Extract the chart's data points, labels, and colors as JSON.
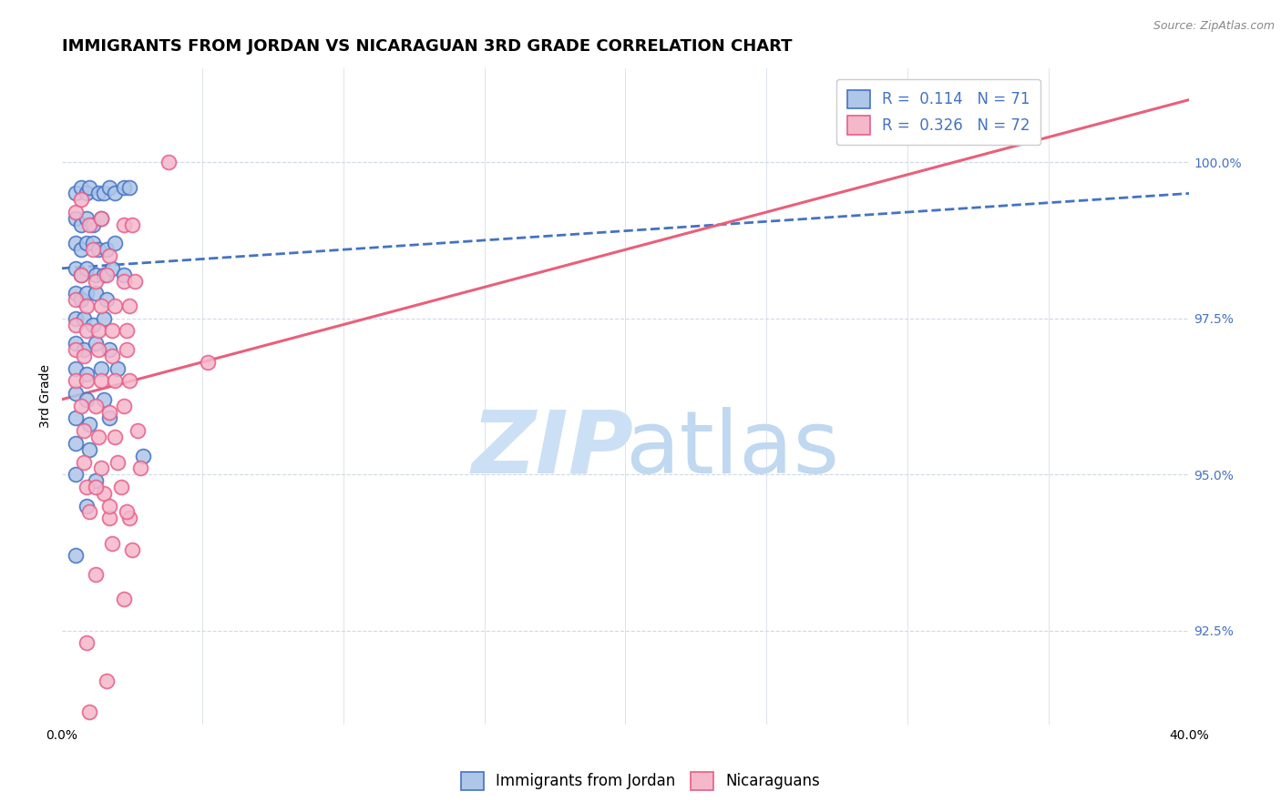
{
  "title": "IMMIGRANTS FROM JORDAN VS NICARAGUAN 3RD GRADE CORRELATION CHART",
  "source": "Source: ZipAtlas.com",
  "ylabel_label": "3rd Grade",
  "yticks": [
    92.5,
    95.0,
    97.5,
    100.0
  ],
  "ytick_labels": [
    "92.5%",
    "95.0%",
    "97.5%",
    "100.0%"
  ],
  "xlim": [
    0.0,
    40.0
  ],
  "ylim": [
    91.0,
    101.5
  ],
  "jordan_color": "#aec6e8",
  "nicaraguan_color": "#f5b8cb",
  "jordan_edge_color": "#4472c4",
  "nicaraguan_edge_color": "#e85d8a",
  "jordan_line_color": "#4472c4",
  "nicaraguan_line_color": "#e8607a",
  "grid_color": "#d0d8e8",
  "right_axis_color": "#4472c4",
  "background_color": "#ffffff",
  "watermark_zip_color": "#cce0f5",
  "watermark_atlas_color": "#c0d8f0",
  "title_fontsize": 13,
  "axis_label_fontsize": 10,
  "legend_fontsize": 12,
  "tick_fontsize": 10,
  "source_fontsize": 9,
  "marker_size": 130,
  "jordan_points_x": [
    0.5,
    0.7,
    0.9,
    1.0,
    1.3,
    1.5,
    1.7,
    1.9,
    2.2,
    2.4,
    0.5,
    0.7,
    0.9,
    1.1,
    1.4,
    0.5,
    0.7,
    0.9,
    1.1,
    1.3,
    1.6,
    1.9,
    0.5,
    0.7,
    0.9,
    1.2,
    1.5,
    1.8,
    2.2,
    0.5,
    0.7,
    0.9,
    1.2,
    1.6,
    0.5,
    0.8,
    1.1,
    1.5,
    0.5,
    0.8,
    1.2,
    1.7,
    0.5,
    0.9,
    1.4,
    2.0,
    0.5,
    0.9,
    1.5,
    0.5,
    1.0,
    1.7,
    0.5,
    1.0,
    2.9,
    0.5,
    1.2,
    0.9,
    0.5
  ],
  "jordan_points_y": [
    99.5,
    99.6,
    99.5,
    99.6,
    99.5,
    99.5,
    99.6,
    99.5,
    99.6,
    99.6,
    99.1,
    99.0,
    99.1,
    99.0,
    99.1,
    98.7,
    98.6,
    98.7,
    98.7,
    98.6,
    98.6,
    98.7,
    98.3,
    98.2,
    98.3,
    98.2,
    98.2,
    98.3,
    98.2,
    97.9,
    97.8,
    97.9,
    97.9,
    97.8,
    97.5,
    97.5,
    97.4,
    97.5,
    97.1,
    97.0,
    97.1,
    97.0,
    96.7,
    96.6,
    96.7,
    96.7,
    96.3,
    96.2,
    96.2,
    95.9,
    95.8,
    95.9,
    95.5,
    95.4,
    95.3,
    95.0,
    94.9,
    94.5,
    93.7
  ],
  "nicaraguan_points_x": [
    0.5,
    0.7,
    1.0,
    1.4,
    2.2,
    2.5,
    1.1,
    1.7,
    0.7,
    1.2,
    1.6,
    2.2,
    2.6,
    0.5,
    0.9,
    1.4,
    1.9,
    2.4,
    0.5,
    0.9,
    1.3,
    1.8,
    2.3,
    0.5,
    0.8,
    1.3,
    1.8,
    2.3,
    0.5,
    0.9,
    1.4,
    1.9,
    2.4,
    0.7,
    1.2,
    1.7,
    2.2,
    0.8,
    1.3,
    1.9,
    2.7,
    0.8,
    1.4,
    2.0,
    2.8,
    0.9,
    1.5,
    2.1,
    1.0,
    1.7,
    2.4,
    1.2,
    1.7,
    2.3,
    1.8,
    2.5,
    1.2,
    2.2,
    0.9,
    1.6,
    1.0,
    3.8,
    5.2
  ],
  "nicaraguan_points_y": [
    99.2,
    99.4,
    99.0,
    99.1,
    99.0,
    99.0,
    98.6,
    98.5,
    98.2,
    98.1,
    98.2,
    98.1,
    98.1,
    97.8,
    97.7,
    97.7,
    97.7,
    97.7,
    97.4,
    97.3,
    97.3,
    97.3,
    97.3,
    97.0,
    96.9,
    97.0,
    96.9,
    97.0,
    96.5,
    96.5,
    96.5,
    96.5,
    96.5,
    96.1,
    96.1,
    96.0,
    96.1,
    95.7,
    95.6,
    95.6,
    95.7,
    95.2,
    95.1,
    95.2,
    95.1,
    94.8,
    94.7,
    94.8,
    94.4,
    94.3,
    94.3,
    94.8,
    94.5,
    94.4,
    93.9,
    93.8,
    93.4,
    93.0,
    92.3,
    91.7,
    91.2,
    100.0,
    96.8
  ],
  "jordan_trend_x": [
    0.0,
    40.0
  ],
  "jordan_trend_y": [
    98.3,
    99.5
  ],
  "nicaraguan_trend_x": [
    0.0,
    40.0
  ],
  "nicaraguan_trend_y": [
    96.2,
    101.0
  ]
}
